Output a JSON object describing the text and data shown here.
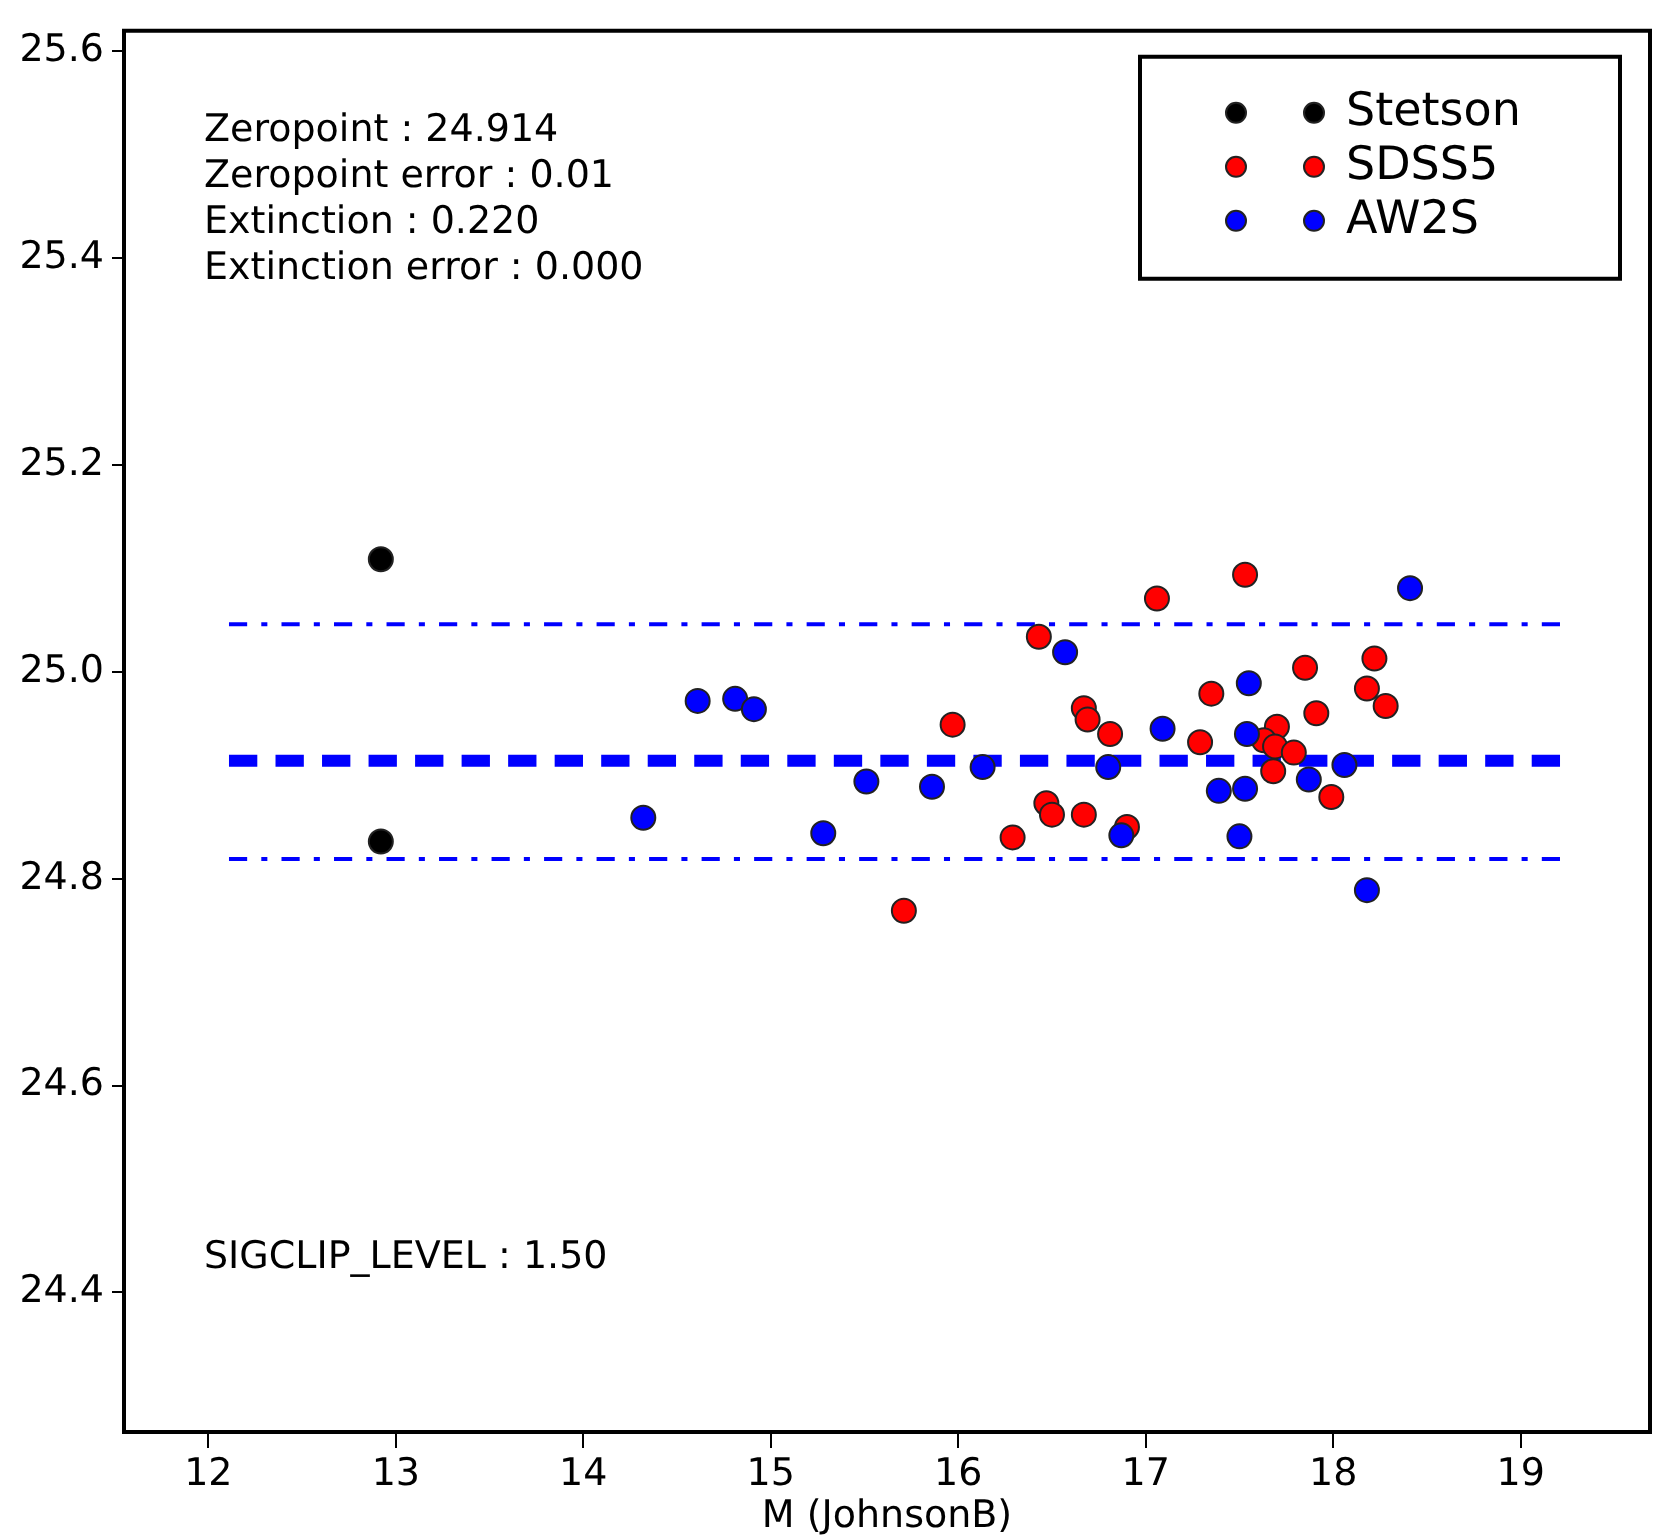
{
  "chart_data": {
    "type": "scatter",
    "xlabel": "M (JohnsonB)",
    "xlim": [
      11.55,
      19.69
    ],
    "xticks": [
      12,
      13,
      14,
      15,
      16,
      17,
      18,
      19
    ],
    "ylim": [
      24.265,
      25.62
    ],
    "yticks": [
      24.4,
      24.6,
      24.8,
      {
        "value": 25.0,
        "label": "25.0"
      },
      25.2,
      25.4,
      25.6
    ],
    "grid": false,
    "legend": "top right",
    "marker": "circle",
    "annotations": [
      "Zeropoint : 24.914",
      "Zeropoint error : 0.01",
      "Extinction : 0.220",
      "Extinction error : 0.000",
      "SIGCLIP_LEVEL : 1.50"
    ],
    "series": [
      {
        "type": "line",
        "line_style": "dashed",
        "marker": "none",
        "color": "#0000ff",
        "x": [
          12.11,
          19.21
        ],
        "values": [
          24.914,
          24.914
        ]
      },
      {
        "type": "line",
        "line_style": "dotted",
        "marker": "none",
        "color": "#0000ff",
        "x": [
          12.11,
          19.21
        ],
        "values": [
          25.046,
          25.046
        ]
      },
      {
        "type": "line",
        "line_style": "dotted",
        "marker": "none",
        "color": "#0000ff",
        "x": [
          12.11,
          19.21
        ],
        "values": [
          24.819,
          24.819
        ]
      },
      {
        "name": "Stetson",
        "color": "#000000",
        "x": [
          12.92,
          12.92
        ],
        "values": [
          25.109,
          24.836
        ]
      },
      {
        "name": "SDSS5",
        "color": "#ff0000",
        "x": [
          15.97,
          16.43,
          16.67,
          16.69,
          16.81,
          16.47,
          16.5,
          16.67,
          16.29,
          16.9,
          15.71,
          17.06,
          17.53,
          18.22,
          17.85,
          18.18,
          18.28,
          17.35,
          17.91,
          17.7,
          17.29,
          17.63,
          17.69,
          17.79,
          17.68,
          17.99
        ],
        "values": [
          24.949,
          25.034,
          24.965,
          24.954,
          24.94,
          24.873,
          24.862,
          24.862,
          24.84,
          24.85,
          24.769,
          25.071,
          25.094,
          25.013,
          25.004,
          24.984,
          24.967,
          24.979,
          24.96,
          24.947,
          24.932,
          24.934,
          24.928,
          24.922,
          24.904,
          24.879
        ]
      },
      {
        "name": "AW2S",
        "color": "#0000ff",
        "x": [
          14.61,
          14.32,
          14.81,
          14.91,
          16.57,
          17.09,
          16.13,
          16.8,
          15.51,
          15.86,
          15.28,
          16.87,
          18.41,
          17.55,
          17.54,
          18.06,
          17.87,
          17.39,
          17.53,
          17.5,
          18.18
        ],
        "values": [
          24.972,
          24.859,
          24.974,
          24.964,
          25.019,
          24.945,
          24.908,
          24.908,
          24.894,
          24.889,
          24.844,
          24.842,
          25.081,
          24.989,
          24.94,
          24.91,
          24.896,
          24.885,
          24.887,
          24.841,
          24.789
        ]
      }
    ]
  }
}
